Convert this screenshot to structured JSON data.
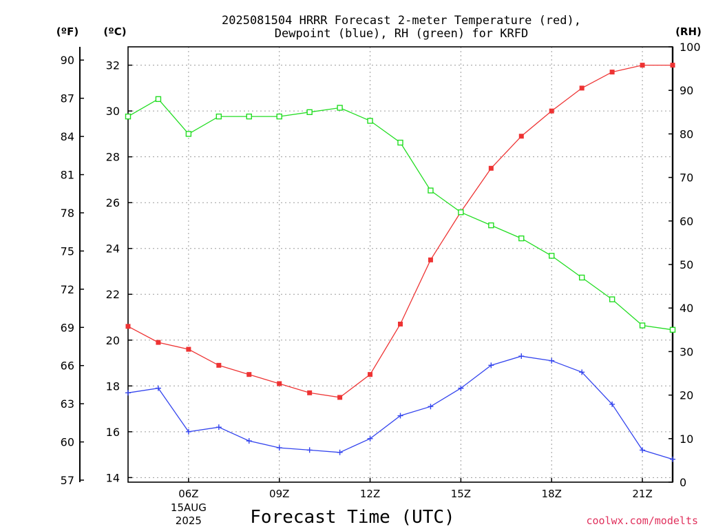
{
  "title": {
    "line1": "2025081504 HRRR Forecast 2-meter Temperature (red),",
    "line2": "Dewpoint (blue), RH (green) for KRFD"
  },
  "units": {
    "fahrenheit": "(ºF)",
    "celsius": "(ºC)",
    "rh": "(RH)"
  },
  "credit": "coolwx.com/modelts",
  "chart_data": {
    "type": "line",
    "xlabel": "Forecast Time (UTC)",
    "x": [
      4,
      5,
      6,
      7,
      8,
      9,
      10,
      11,
      12,
      13,
      14,
      15,
      16,
      17,
      18,
      19,
      20,
      21,
      22
    ],
    "x_unit": "hour UTC, 15 Aug 2025",
    "xlim": [
      4,
      22
    ],
    "x_ticks": [
      {
        "x": 6,
        "label": "06Z",
        "sub": [
          "15AUG",
          "2025"
        ]
      },
      {
        "x": 9,
        "label": "09Z"
      },
      {
        "x": 12,
        "label": "12Z"
      },
      {
        "x": 15,
        "label": "15Z"
      },
      {
        "x": 18,
        "label": "18Z"
      },
      {
        "x": 21,
        "label": "21Z"
      }
    ],
    "y_celsius": {
      "ylim": [
        13.8,
        32.8
      ],
      "ticks": [
        "14",
        "16",
        "18",
        "20",
        "22",
        "24",
        "26",
        "28",
        "30",
        "32"
      ]
    },
    "y_fahrenheit": {
      "ticks": [
        "57",
        "60",
        "63",
        "66",
        "69",
        "72",
        "75",
        "78",
        "81",
        "84",
        "87",
        "90"
      ]
    },
    "y_rh": {
      "ylim": [
        0,
        100
      ],
      "ticks": [
        "0",
        "10",
        "20",
        "30",
        "40",
        "50",
        "60",
        "70",
        "80",
        "90",
        "100"
      ]
    },
    "grid": true,
    "series": [
      {
        "name": "Temperature",
        "axis": "celsius",
        "color": "#ee3333",
        "marker": "filled-square",
        "values": [
          20.6,
          19.9,
          19.6,
          18.9,
          18.5,
          18.1,
          17.7,
          17.5,
          18.5,
          20.7,
          23.5,
          25.6,
          27.5,
          28.9,
          30.0,
          31.0,
          31.7,
          32.0,
          32.0
        ]
      },
      {
        "name": "Dewpoint",
        "axis": "celsius",
        "color": "#3344ee",
        "marker": "plus",
        "values": [
          17.7,
          17.9,
          16.0,
          16.2,
          15.6,
          15.3,
          15.2,
          15.1,
          15.7,
          16.7,
          17.1,
          17.9,
          18.9,
          19.3,
          19.1,
          18.6,
          17.2,
          15.2,
          14.8
        ]
      },
      {
        "name": "RH",
        "axis": "rh",
        "color": "#22dd22",
        "marker": "open-square",
        "values": [
          84,
          88,
          80,
          84,
          84,
          84,
          85,
          86,
          83,
          78,
          67,
          62,
          59,
          56,
          52,
          47,
          42,
          36,
          35
        ]
      }
    ]
  }
}
